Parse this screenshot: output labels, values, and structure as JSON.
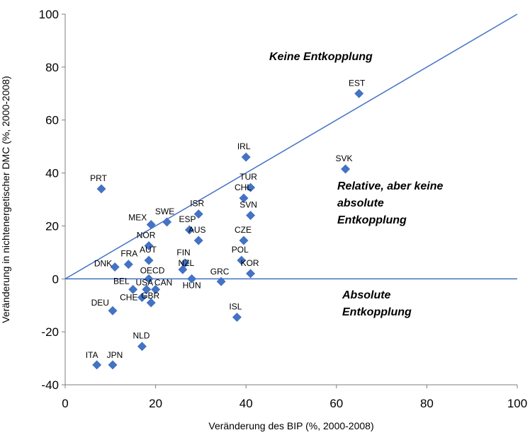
{
  "chart_data": {
    "type": "scatter",
    "xlabel": "Veränderung des BIP (%, 2000-2008)",
    "ylabel": "Veränderung in nichtenergetischer DMC (%, 2000-2008)",
    "xlim": [
      0,
      100
    ],
    "ylim": [
      -40,
      100
    ],
    "xticks": [
      "0",
      "20",
      "40",
      "60",
      "80",
      "100"
    ],
    "yticks": [
      "-40",
      "-20",
      "0",
      "20",
      "40",
      "60",
      "80",
      "100"
    ],
    "grid": false,
    "marker_color": "#4472c4",
    "line_color": "#4472c4",
    "reference_lines": [
      {
        "from": [
          0,
          0
        ],
        "to": [
          100,
          100
        ]
      },
      {
        "from": [
          0,
          0
        ],
        "to": [
          100,
          0
        ]
      }
    ],
    "points": [
      {
        "label": "EST",
        "x": 65,
        "y": 70
      },
      {
        "label": "IRL",
        "x": 40,
        "y": 46
      },
      {
        "label": "SVK",
        "x": 62,
        "y": 41.5
      },
      {
        "label": "PRT",
        "x": 8,
        "y": 34
      },
      {
        "label": "TUR",
        "x": 41,
        "y": 34.5
      },
      {
        "label": "CHL",
        "x": 39.5,
        "y": 30.5
      },
      {
        "label": "SVN",
        "x": 41,
        "y": 24
      },
      {
        "label": "ISR",
        "x": 29.5,
        "y": 24.5
      },
      {
        "label": "SWE",
        "x": 22.5,
        "y": 21.5
      },
      {
        "label": "MEX",
        "x": 19,
        "y": 20.5
      },
      {
        "label": "ESP",
        "x": 27.5,
        "y": 18.5
      },
      {
        "label": "AUS",
        "x": 29.5,
        "y": 14.5
      },
      {
        "label": "CZE",
        "x": 39.5,
        "y": 14.5
      },
      {
        "label": "NOR",
        "x": 18.5,
        "y": 12.5
      },
      {
        "label": "AUT",
        "x": 18.5,
        "y": 7
      },
      {
        "label": "POL",
        "x": 39,
        "y": 7
      },
      {
        "label": "FIN",
        "x": 26.5,
        "y": 6
      },
      {
        "label": "FRA",
        "x": 14,
        "y": 5.5
      },
      {
        "label": "DNK",
        "x": 11,
        "y": 4.5
      },
      {
        "label": "NZL",
        "x": 26,
        "y": 3.5
      },
      {
        "label": "KOR",
        "x": 41,
        "y": 2
      },
      {
        "label": "OECD",
        "x": 18.5,
        "y": 0
      },
      {
        "label": "HUN",
        "x": 28,
        "y": 0
      },
      {
        "label": "GRC",
        "x": 34.5,
        "y": -1
      },
      {
        "label": "USA",
        "x": 18,
        "y": -4
      },
      {
        "label": "BEL",
        "x": 15,
        "y": -4
      },
      {
        "label": "CAN",
        "x": 20,
        "y": -4
      },
      {
        "label": "CHE",
        "x": 17,
        "y": -7
      },
      {
        "label": "GBR",
        "x": 19,
        "y": -9
      },
      {
        "label": "DEU",
        "x": 10.5,
        "y": -12
      },
      {
        "label": "ISL",
        "x": 38,
        "y": -14.5
      },
      {
        "label": "NLD",
        "x": 17,
        "y": -25.5
      },
      {
        "label": "ITA",
        "x": 7,
        "y": -32.5
      },
      {
        "label": "JPN",
        "x": 10.5,
        "y": -32.5
      }
    ],
    "annotations": [
      {
        "lines": [
          "Keine Entkopplung"
        ],
        "x": 65,
        "y": 82
      },
      {
        "lines": [
          "Relative, aber keine",
          "absolute",
          "Entkopplung"
        ],
        "x": 76,
        "y": 30
      },
      {
        "lines": [
          "Absolute",
          "Entkopplung"
        ],
        "x": 77,
        "y": -7
      }
    ]
  }
}
